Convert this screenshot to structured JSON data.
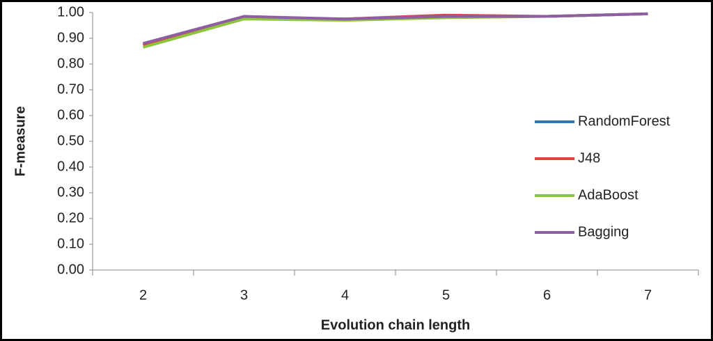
{
  "chart_data": {
    "type": "line",
    "y_label": "F-measure",
    "x_label": "Evolution chain length",
    "categories": [
      "2",
      "3",
      "4",
      "5",
      "6",
      "7"
    ],
    "series": [
      {
        "name": "RandomForest",
        "color": "#2e75b6",
        "values": [
          0.875,
          0.98,
          0.975,
          0.985,
          0.985,
          0.995
        ]
      },
      {
        "name": "J48",
        "color": "#e0443e",
        "values": [
          0.875,
          0.98,
          0.975,
          0.99,
          0.985,
          0.995
        ]
      },
      {
        "name": "AdaBoost",
        "color": "#8cc43c",
        "values": [
          0.865,
          0.975,
          0.97,
          0.98,
          0.985,
          0.995
        ]
      },
      {
        "name": "Bagging",
        "color": "#8e5ea2",
        "values": [
          0.88,
          0.985,
          0.975,
          0.985,
          0.985,
          0.995
        ]
      }
    ],
    "ylim": [
      0,
      1
    ],
    "yticks": [
      {
        "value": 0,
        "label": "0.00"
      },
      {
        "value": 0.1,
        "label": "0.10"
      },
      {
        "value": 0.2,
        "label": "0.20"
      },
      {
        "value": 0.3,
        "label": "0.30"
      },
      {
        "value": 0.4,
        "label": "0.40"
      },
      {
        "value": 0.5,
        "label": "0.50"
      },
      {
        "value": 0.6,
        "label": "0.60"
      },
      {
        "value": 0.7,
        "label": "0.70"
      },
      {
        "value": 0.8,
        "label": "0.80"
      },
      {
        "value": 0.9,
        "label": "0.90"
      },
      {
        "value": 1,
        "label": "1.00"
      }
    ],
    "legend": "right"
  }
}
